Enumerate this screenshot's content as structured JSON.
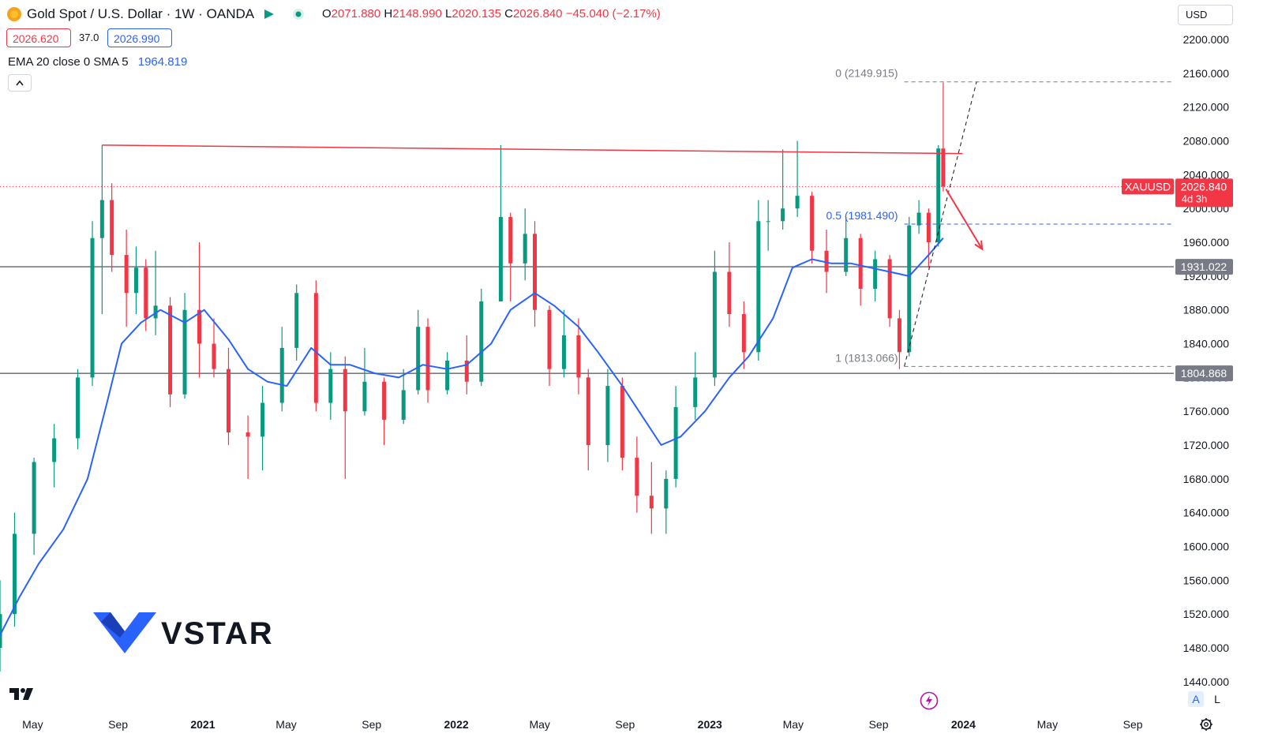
{
  "header": {
    "title": "Gold Spot / U.S. Dollar · 1W · OANDA",
    "o_label": "O",
    "o_value": "2071.880",
    "h_label": "H",
    "h_value": "2148.990",
    "l_label": "L",
    "l_value": "2020.135",
    "c_label": "C",
    "c_value": "2026.840",
    "change": "−45.040 (−2.17%)",
    "bid": "2026.620",
    "spread": "37.0",
    "ask": "2026.990",
    "indicator_label": "EMA 20 close 0 SMA 5",
    "indicator_value": "1964.819",
    "currency": "USD",
    "collapse_icon": "chevron-up-icon"
  },
  "footer": {
    "logo_icon": "tradingview-logo-icon",
    "auto_label": "A",
    "log_label": "L",
    "settings_icon": "gear-icon",
    "alert_icon": "lightning-icon"
  },
  "watermark": {
    "text": "VSTAR"
  },
  "colors": {
    "up": "#089981",
    "down": "#f23645",
    "ema": "#2962ff",
    "resistance": "#f23645",
    "fib": "#2962ff",
    "level": "#787b86"
  },
  "chart_data": {
    "type": "candlestick",
    "symbol": "XAUUSD",
    "timeframe": "1W",
    "ylim": [
      1410,
      2215
    ],
    "y_ticks": [
      2200,
      2160,
      2120,
      2080,
      2040,
      2000,
      1960,
      1920,
      1880,
      1840,
      1800,
      1760,
      1720,
      1680,
      1640,
      1600,
      1560,
      1520,
      1480,
      1440
    ],
    "x_ticks": [
      "May",
      "Sep",
      "2021",
      "May",
      "Sep",
      "2022",
      "May",
      "Sep",
      "2023",
      "May",
      "Sep",
      "2024",
      "May",
      "Sep"
    ],
    "x_range": [
      "2020-03-15",
      "2024-10-30"
    ],
    "last_price_label": {
      "symbol": "XAUUSD",
      "price": "2026.840",
      "countdown": "4d 3h"
    },
    "horizontal_levels": [
      {
        "label": "1931.022",
        "value": 1931.022
      },
      {
        "label": "1804.868",
        "value": 1804.868
      }
    ],
    "fibonacci": [
      {
        "ratio": "0",
        "label": "0 (2149.915)",
        "value": 2149.915
      },
      {
        "ratio": "0.5",
        "label": "0.5 (1981.490)",
        "value": 1981.49
      },
      {
        "ratio": "1",
        "label": "1 (1813.066)",
        "value": 1813.066
      }
    ],
    "resistance_line": {
      "from": [
        "2020-08-09",
        2075
      ],
      "to": [
        "2023-12-31",
        2065
      ]
    },
    "fib_diagonal": {
      "from": [
        "2023-10-08",
        1813.066
      ],
      "to": [
        "2024-01-20",
        2149.915
      ]
    },
    "forecast_arrow": {
      "from": [
        "2023-12-07",
        2023
      ],
      "to": [
        "2024-01-28",
        1952
      ]
    },
    "candles": [
      [
        "2020-03-15",
        1480,
        1560,
        1452,
        1520
      ],
      [
        "2020-04-05",
        1520,
        1640,
        1505,
        1615
      ],
      [
        "2020-05-03",
        1615,
        1705,
        1590,
        1700
      ],
      [
        "2020-06-01",
        1700,
        1745,
        1670,
        1728
      ],
      [
        "2020-07-05",
        1728,
        1810,
        1715,
        1800
      ],
      [
        "2020-07-26",
        1800,
        1985,
        1790,
        1965
      ],
      [
        "2020-08-09",
        1965,
        2075,
        1875,
        2010
      ],
      [
        "2020-08-23",
        2010,
        2030,
        1925,
        1945
      ],
      [
        "2020-09-13",
        1945,
        1975,
        1860,
        1900
      ],
      [
        "2020-09-27",
        1900,
        1955,
        1875,
        1930
      ],
      [
        "2020-10-11",
        1930,
        1940,
        1855,
        1870
      ],
      [
        "2020-10-25",
        1870,
        1950,
        1850,
        1885
      ],
      [
        "2020-11-15",
        1885,
        1895,
        1765,
        1780
      ],
      [
        "2020-12-06",
        1780,
        1900,
        1775,
        1880
      ],
      [
        "2020-12-27",
        1880,
        1960,
        1800,
        1840
      ],
      [
        "2021-01-17",
        1840,
        1870,
        1800,
        1810
      ],
      [
        "2021-02-07",
        1810,
        1835,
        1720,
        1735
      ],
      [
        "2021-03-07",
        1735,
        1755,
        1680,
        1730
      ],
      [
        "2021-03-28",
        1730,
        1790,
        1690,
        1770
      ],
      [
        "2021-04-25",
        1770,
        1860,
        1760,
        1835
      ],
      [
        "2021-05-16",
        1835,
        1910,
        1820,
        1900
      ],
      [
        "2021-06-13",
        1900,
        1915,
        1760,
        1770
      ],
      [
        "2021-07-04",
        1770,
        1830,
        1750,
        1810
      ],
      [
        "2021-07-25",
        1810,
        1825,
        1680,
        1760
      ],
      [
        "2021-08-22",
        1760,
        1835,
        1755,
        1795
      ],
      [
        "2021-09-19",
        1795,
        1800,
        1720,
        1750
      ],
      [
        "2021-10-17",
        1750,
        1810,
        1745,
        1785
      ],
      [
        "2021-11-07",
        1785,
        1880,
        1780,
        1860
      ],
      [
        "2021-11-21",
        1860,
        1870,
        1770,
        1785
      ],
      [
        "2021-12-19",
        1785,
        1830,
        1780,
        1820
      ],
      [
        "2022-01-16",
        1820,
        1850,
        1780,
        1795
      ],
      [
        "2022-02-06",
        1795,
        1905,
        1790,
        1890
      ],
      [
        "2022-03-06",
        1890,
        2075,
        1890,
        1990
      ],
      [
        "2022-03-20",
        1990,
        1995,
        1890,
        1935
      ],
      [
        "2022-04-10",
        1935,
        2000,
        1915,
        1970
      ],
      [
        "2022-04-24",
        1970,
        1985,
        1860,
        1880
      ],
      [
        "2022-05-15",
        1880,
        1885,
        1790,
        1810
      ],
      [
        "2022-06-05",
        1810,
        1880,
        1800,
        1850
      ],
      [
        "2022-06-26",
        1850,
        1870,
        1780,
        1800
      ],
      [
        "2022-07-10",
        1800,
        1810,
        1690,
        1720
      ],
      [
        "2022-08-07",
        1720,
        1810,
        1700,
        1790
      ],
      [
        "2022-08-28",
        1790,
        1800,
        1690,
        1705
      ],
      [
        "2022-09-18",
        1705,
        1730,
        1640,
        1660
      ],
      [
        "2022-10-09",
        1660,
        1700,
        1615,
        1645
      ],
      [
        "2022-10-30",
        1645,
        1690,
        1615,
        1680
      ],
      [
        "2022-11-13",
        1680,
        1790,
        1670,
        1765
      ],
      [
        "2022-12-11",
        1765,
        1830,
        1750,
        1800
      ],
      [
        "2023-01-08",
        1800,
        1950,
        1790,
        1925
      ],
      [
        "2023-01-29",
        1925,
        1960,
        1860,
        1875
      ],
      [
        "2023-02-19",
        1875,
        1890,
        1810,
        1830
      ],
      [
        "2023-03-12",
        1830,
        2010,
        1820,
        1985
      ],
      [
        "2023-03-26",
        1985,
        2010,
        1950,
        1985
      ],
      [
        "2023-04-16",
        1985,
        2070,
        1975,
        2000
      ],
      [
        "2023-05-07",
        2000,
        2080,
        1990,
        2015
      ],
      [
        "2023-05-28",
        2015,
        2020,
        1935,
        1950
      ],
      [
        "2023-06-18",
        1950,
        1975,
        1900,
        1925
      ],
      [
        "2023-07-16",
        1925,
        1990,
        1920,
        1965
      ],
      [
        "2023-08-06",
        1965,
        1970,
        1885,
        1905
      ],
      [
        "2023-08-27",
        1905,
        1950,
        1890,
        1940
      ],
      [
        "2023-09-17",
        1940,
        1945,
        1860,
        1870
      ],
      [
        "2023-10-01",
        1870,
        1880,
        1810,
        1830
      ],
      [
        "2023-10-15",
        1830,
        1990,
        1825,
        1980
      ],
      [
        "2023-10-29",
        1980,
        2010,
        1970,
        1995
      ],
      [
        "2023-11-12",
        1995,
        2000,
        1930,
        1960
      ],
      [
        "2023-11-26",
        1960,
        2075,
        1955,
        2071
      ],
      [
        "2023-12-03",
        2071,
        2149,
        2020,
        2026
      ]
    ],
    "ema": [
      [
        "2020-03-15",
        1495
      ],
      [
        "2020-04-12",
        1540
      ],
      [
        "2020-05-10",
        1580
      ],
      [
        "2020-06-14",
        1620
      ],
      [
        "2020-07-19",
        1680
      ],
      [
        "2020-08-16",
        1770
      ],
      [
        "2020-09-06",
        1840
      ],
      [
        "2020-10-04",
        1865
      ],
      [
        "2020-11-01",
        1880
      ],
      [
        "2020-12-06",
        1865
      ],
      [
        "2021-01-03",
        1880
      ],
      [
        "2021-02-07",
        1845
      ],
      [
        "2021-03-07",
        1810
      ],
      [
        "2021-04-04",
        1795
      ],
      [
        "2021-05-02",
        1790
      ],
      [
        "2021-06-06",
        1835
      ],
      [
        "2021-07-04",
        1815
      ],
      [
        "2021-08-01",
        1815
      ],
      [
        "2021-09-05",
        1805
      ],
      [
        "2021-10-10",
        1800
      ],
      [
        "2021-11-14",
        1815
      ],
      [
        "2021-12-19",
        1810
      ],
      [
        "2022-01-16",
        1815
      ],
      [
        "2022-02-20",
        1840
      ],
      [
        "2022-03-20",
        1880
      ],
      [
        "2022-04-24",
        1900
      ],
      [
        "2022-05-22",
        1885
      ],
      [
        "2022-06-26",
        1860
      ],
      [
        "2022-07-24",
        1830
      ],
      [
        "2022-08-28",
        1790
      ],
      [
        "2022-09-25",
        1755
      ],
      [
        "2022-10-23",
        1720
      ],
      [
        "2022-11-20",
        1730
      ],
      [
        "2022-12-25",
        1760
      ],
      [
        "2023-01-29",
        1800
      ],
      [
        "2023-02-26",
        1825
      ],
      [
        "2023-04-02",
        1870
      ],
      [
        "2023-04-30",
        1930
      ],
      [
        "2023-05-28",
        1940
      ],
      [
        "2023-06-25",
        1935
      ],
      [
        "2023-07-23",
        1935
      ],
      [
        "2023-08-20",
        1930
      ],
      [
        "2023-09-17",
        1925
      ],
      [
        "2023-10-15",
        1920
      ],
      [
        "2023-11-12",
        1945
      ],
      [
        "2023-12-03",
        1965
      ]
    ]
  }
}
